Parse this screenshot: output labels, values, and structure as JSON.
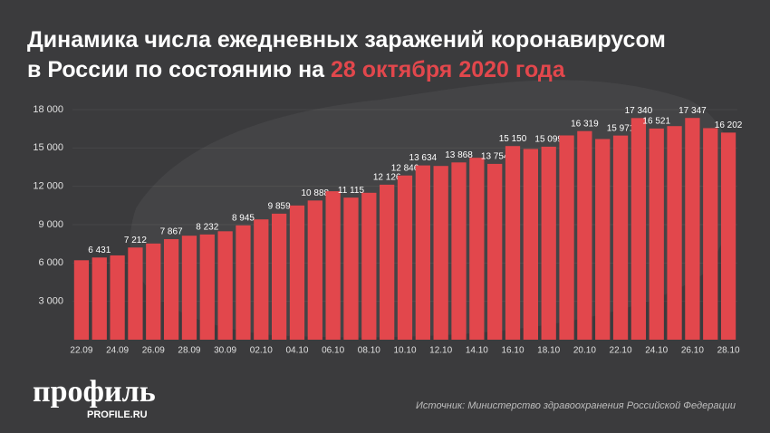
{
  "chart_data": {
    "type": "bar",
    "title": [
      "Динамика числа ежедневных заражений коронавирусом",
      "в России по состоянию на"
    ],
    "title_highlight": "28 октября 2020 года",
    "categories": [
      "22.09",
      null,
      "24.09",
      null,
      "26.09",
      null,
      "28.09",
      null,
      "30.09",
      null,
      "02.10",
      null,
      "04.10",
      null,
      "06.10",
      null,
      "08.10",
      null,
      "10.10",
      null,
      "12.10",
      null,
      "14.10",
      null,
      "16.10",
      null,
      "18.10",
      null,
      "20.10",
      null,
      "22.10",
      null,
      "24.10",
      null,
      "26.10",
      null,
      "28.10"
    ],
    "values": [
      6215,
      6431,
      6595,
      7212,
      7523,
      7867,
      8135,
      8232,
      8481,
      8945,
      9412,
      9859,
      10499,
      10888,
      11615,
      11115,
      11493,
      12126,
      12846,
      13634,
      13592,
      13868,
      14231,
      13754,
      15150,
      14922,
      15099,
      15982,
      16319,
      15700,
      15971,
      17340,
      16521,
      16710,
      17347,
      16550,
      16202
    ],
    "value_labels": [
      null,
      "6 431",
      null,
      "7 212",
      null,
      "7 867",
      null,
      "8 232",
      null,
      "8 945",
      null,
      "9 859",
      null,
      "10 888",
      null,
      "11 115",
      null,
      "12 126",
      "12 846",
      "13 634",
      null,
      "13 868",
      null,
      "13 754",
      "15 150",
      null,
      "15 099",
      null,
      "16 319",
      null,
      "15 971",
      "17 340",
      "16 521",
      null,
      "17 347",
      null,
      "16 202"
    ],
    "color": "#e2474c",
    "ylim": [
      0,
      18000
    ],
    "yticks": [
      {
        "value": 3000,
        "label": "3 000"
      },
      {
        "value": 6000,
        "label": "6 000"
      },
      {
        "value": 9000,
        "label": "9 000"
      },
      {
        "value": 12000,
        "label": "12 000"
      },
      {
        "value": 15000,
        "label": "15 000"
      },
      {
        "value": 18000,
        "label": "18 000"
      }
    ],
    "grid": true
  },
  "branding": {
    "logo": "профиль",
    "site": "PROFILE.RU"
  },
  "source": "Источник: Министерство здравоохранения Российской Федерации"
}
